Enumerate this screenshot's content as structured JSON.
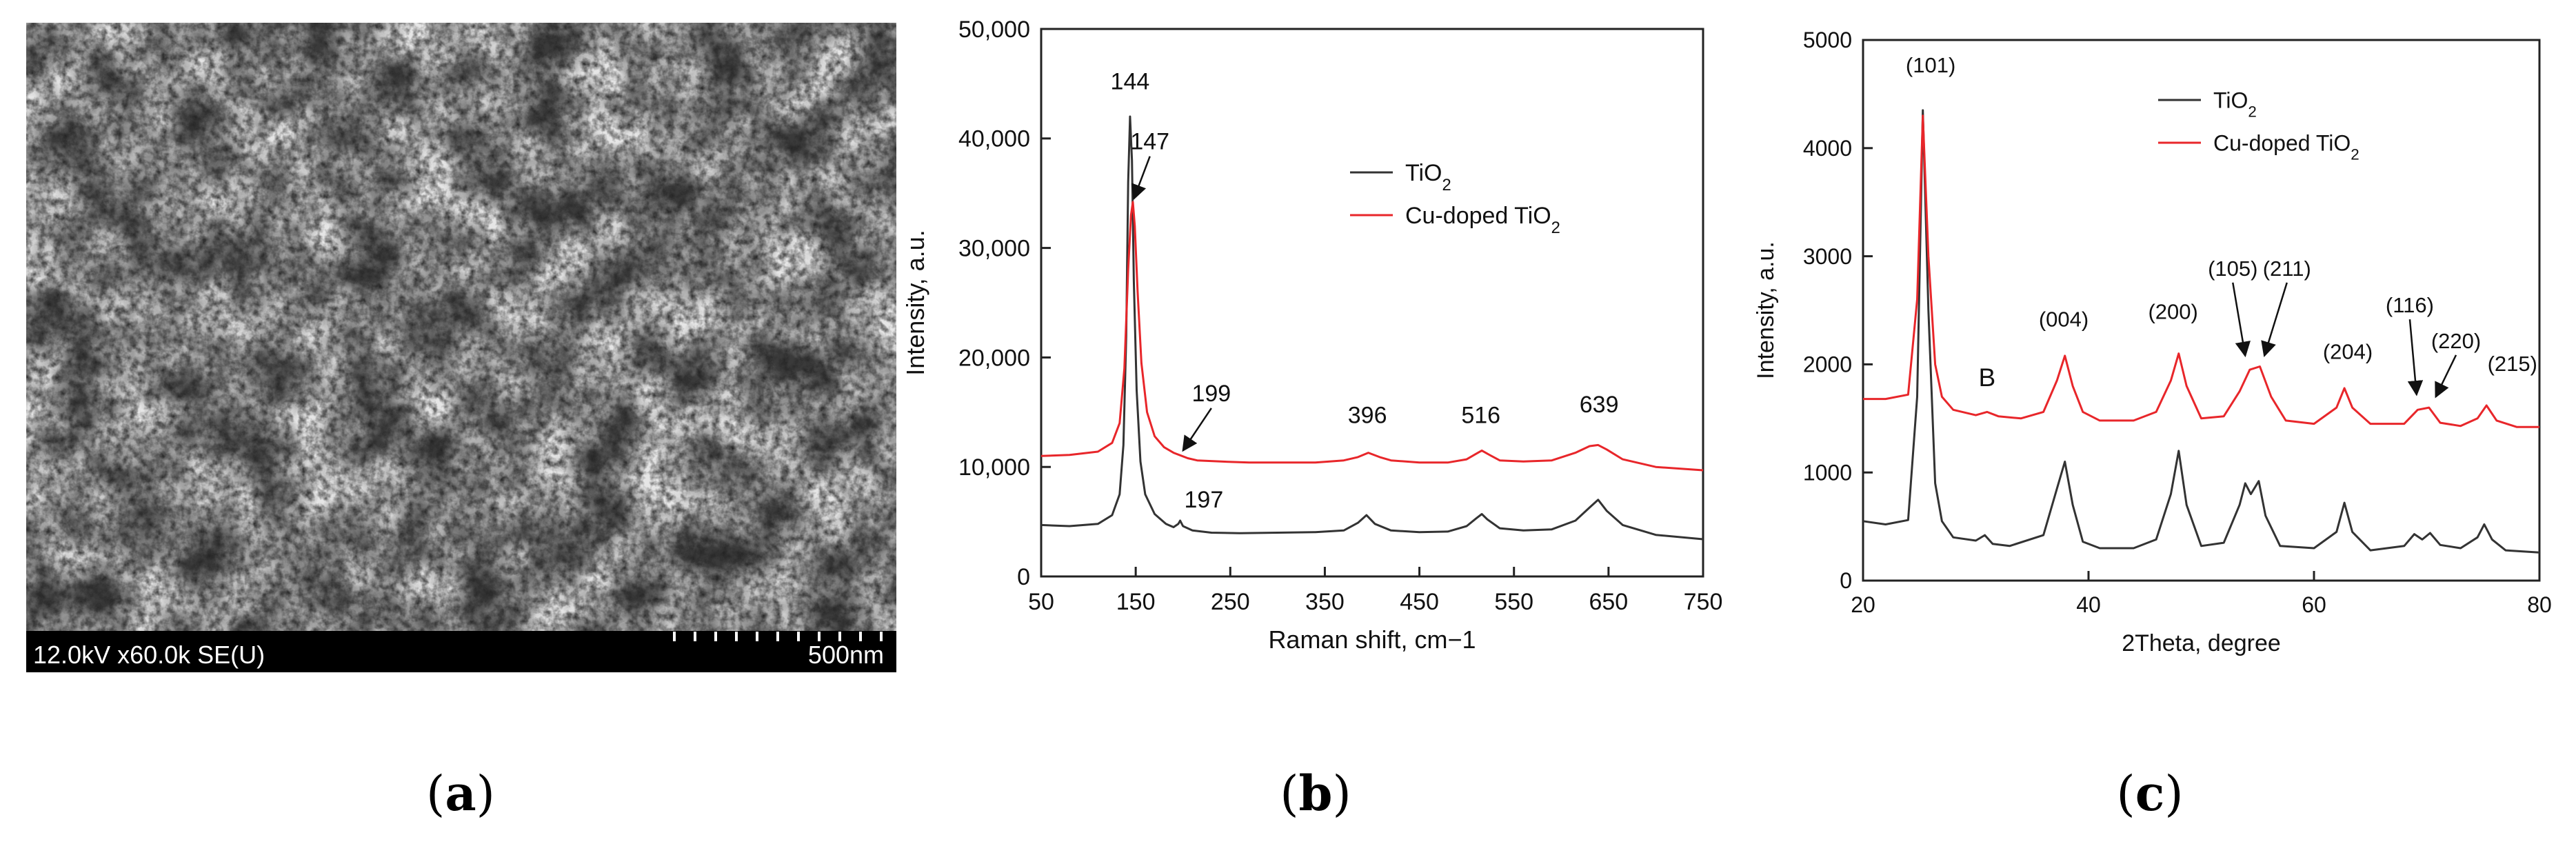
{
  "panels": {
    "a": {
      "label_open": "(",
      "label_letter": "a",
      "label_close": ")",
      "sem_info": "12.0kV x60.0k SE(U)",
      "scale_bar": "500nm"
    },
    "b": {
      "label_open": "(",
      "label_letter": "b",
      "label_close": ")"
    },
    "c": {
      "label_open": "(",
      "label_letter": "c",
      "label_close": ")"
    }
  },
  "chart_data": [
    {
      "id": "raman",
      "type": "line",
      "title": "",
      "xlabel": "Raman shift, cm−1",
      "ylabel": "Intensity, a.u.",
      "xlim": [
        50,
        750
      ],
      "ylim": [
        0,
        50000
      ],
      "xticks": [
        "50",
        "150",
        "250",
        "350",
        "450",
        "550",
        "650",
        "750"
      ],
      "yticks": [
        "0",
        "10,000",
        "20,000",
        "30,000",
        "40,000",
        "50,000"
      ],
      "legend_position": "top-right",
      "series": [
        {
          "name": "TiO2",
          "legend_main": "TiO",
          "legend_sub": "2",
          "color": "#333333",
          "x": [
            50,
            80,
            110,
            125,
            133,
            137,
            140,
            142,
            144,
            146,
            148,
            151,
            155,
            160,
            170,
            182,
            190,
            195,
            197,
            200,
            210,
            230,
            260,
            300,
            340,
            370,
            385,
            394,
            403,
            420,
            450,
            480,
            500,
            510,
            516,
            522,
            535,
            560,
            590,
            615,
            630,
            639,
            648,
            665,
            700,
            750
          ],
          "y": [
            4700,
            4600,
            4800,
            5600,
            7500,
            12000,
            22000,
            36000,
            42000,
            38000,
            27000,
            17000,
            10500,
            7500,
            5700,
            4800,
            4500,
            4800,
            5100,
            4600,
            4200,
            4000,
            3950,
            4000,
            4050,
            4200,
            4900,
            5600,
            4800,
            4200,
            4050,
            4100,
            4600,
            5300,
            5700,
            5200,
            4400,
            4200,
            4300,
            5100,
            6300,
            7000,
            6000,
            4700,
            3800,
            3400
          ]
        },
        {
          "name": "Cu-doped TiO2",
          "legend_main": "Cu-doped TiO",
          "legend_sub": "2",
          "color": "#e8262a",
          "x": [
            50,
            80,
            110,
            125,
            133,
            138,
            142,
            145,
            147,
            149,
            152,
            156,
            162,
            170,
            180,
            190,
            199,
            205,
            215,
            240,
            270,
            300,
            340,
            370,
            385,
            396,
            408,
            420,
            450,
            480,
            500,
            510,
            516,
            522,
            535,
            560,
            590,
            615,
            630,
            639,
            648,
            665,
            700,
            750
          ],
          "y": [
            11000,
            11100,
            11400,
            12200,
            14000,
            19000,
            28000,
            33000,
            34200,
            32000,
            26000,
            19500,
            15000,
            12800,
            11800,
            11300,
            11000,
            10800,
            10600,
            10500,
            10400,
            10400,
            10400,
            10600,
            10900,
            11300,
            10900,
            10600,
            10400,
            10400,
            10700,
            11200,
            11500,
            11200,
            10600,
            10500,
            10600,
            11300,
            11900,
            12000,
            11600,
            10700,
            10000,
            9700
          ]
        }
      ],
      "annotations": [
        {
          "text": "144",
          "x": 144,
          "y": 44500
        },
        {
          "text": "147",
          "x": 165,
          "y": 39000,
          "arrow_to": [
            148,
            34500
          ]
        },
        {
          "text": "199",
          "x": 230,
          "y": 16000,
          "arrow_to": [
            200,
            11500
          ]
        },
        {
          "text": "197",
          "x": 222,
          "y": 6300
        },
        {
          "text": "396",
          "x": 395,
          "y": 14000
        },
        {
          "text": "516",
          "x": 515,
          "y": 14000
        },
        {
          "text": "639",
          "x": 640,
          "y": 15000
        }
      ]
    },
    {
      "id": "xrd",
      "type": "line",
      "title": "",
      "xlabel": "2Theta, degree",
      "ylabel": "Intensity, a.u.",
      "xlim": [
        20,
        80
      ],
      "ylim": [
        0,
        5000
      ],
      "xticks": [
        "20",
        "40",
        "60",
        "80"
      ],
      "yticks": [
        "0",
        "1000",
        "2000",
        "3000",
        "4000",
        "5000"
      ],
      "legend_position": "top-right",
      "series": [
        {
          "name": "TiO2",
          "legend_main": "TiO",
          "legend_sub": "2",
          "color": "#333333",
          "x": [
            20,
            22,
            24,
            24.8,
            25.3,
            25.8,
            26.4,
            27,
            28,
            30,
            30.8,
            31.5,
            33,
            36,
            37.2,
            37.9,
            38.6,
            39.5,
            41,
            44,
            46,
            47.3,
            48,
            48.7,
            50,
            52,
            53.4,
            53.9,
            54.4,
            55.1,
            55.7,
            57,
            60,
            62,
            62.7,
            63.4,
            65,
            68,
            68.9,
            69.6,
            70.3,
            71.2,
            73,
            74.5,
            75.1,
            75.8,
            77,
            80
          ],
          "y": [
            550,
            520,
            560,
            1700,
            4350,
            2500,
            900,
            550,
            400,
            370,
            420,
            340,
            320,
            420,
            850,
            1100,
            700,
            360,
            300,
            300,
            380,
            800,
            1200,
            700,
            320,
            350,
            700,
            900,
            800,
            920,
            600,
            320,
            300,
            450,
            720,
            450,
            280,
            320,
            430,
            380,
            440,
            330,
            300,
            400,
            520,
            380,
            280,
            260
          ]
        },
        {
          "name": "Cu-doped TiO2",
          "legend_main": "Cu-doped TiO",
          "legend_sub": "2",
          "color": "#e8262a",
          "x": [
            20,
            22,
            24,
            24.8,
            25.3,
            25.8,
            26.4,
            27,
            28,
            30,
            31,
            32,
            34,
            36,
            37.2,
            37.9,
            38.6,
            39.5,
            41,
            44,
            46,
            47.3,
            48,
            48.7,
            50,
            52,
            53.4,
            54.3,
            55.2,
            56.2,
            57.5,
            60,
            62,
            62.7,
            63.4,
            65,
            68,
            69.2,
            70.2,
            71.2,
            73,
            74.5,
            75.3,
            76.2,
            78,
            80
          ],
          "y": [
            1680,
            1680,
            1720,
            2600,
            4300,
            3000,
            2000,
            1700,
            1580,
            1530,
            1560,
            1520,
            1500,
            1560,
            1850,
            2080,
            1800,
            1560,
            1480,
            1480,
            1560,
            1850,
            2100,
            1800,
            1500,
            1520,
            1750,
            1950,
            1980,
            1700,
            1480,
            1450,
            1600,
            1780,
            1600,
            1450,
            1450,
            1580,
            1600,
            1460,
            1430,
            1500,
            1620,
            1480,
            1420,
            1420
          ]
        }
      ],
      "annotations": [
        {
          "text": "(101)",
          "x": 26,
          "y": 4700
        },
        {
          "text": "B",
          "x": 31,
          "y": 1800,
          "style": "letter"
        },
        {
          "text": "(004)",
          "x": 37.8,
          "y": 2350
        },
        {
          "text": "(200)",
          "x": 47.5,
          "y": 2420
        },
        {
          "text": "(105)",
          "x": 52.8,
          "y": 2820,
          "arrow_to": [
            53.9,
            2080
          ]
        },
        {
          "text": "(211)",
          "x": 57.6,
          "y": 2820,
          "arrow_to": [
            55.6,
            2080
          ]
        },
        {
          "text": "(204)",
          "x": 63,
          "y": 2050
        },
        {
          "text": "(116)",
          "x": 68.5,
          "y": 2480,
          "arrow_to": [
            69.1,
            1720
          ]
        },
        {
          "text": "(220)",
          "x": 72.6,
          "y": 2150,
          "arrow_to": [
            70.8,
            1700
          ]
        },
        {
          "text": "(215)",
          "x": 77.6,
          "y": 1940
        }
      ]
    }
  ]
}
